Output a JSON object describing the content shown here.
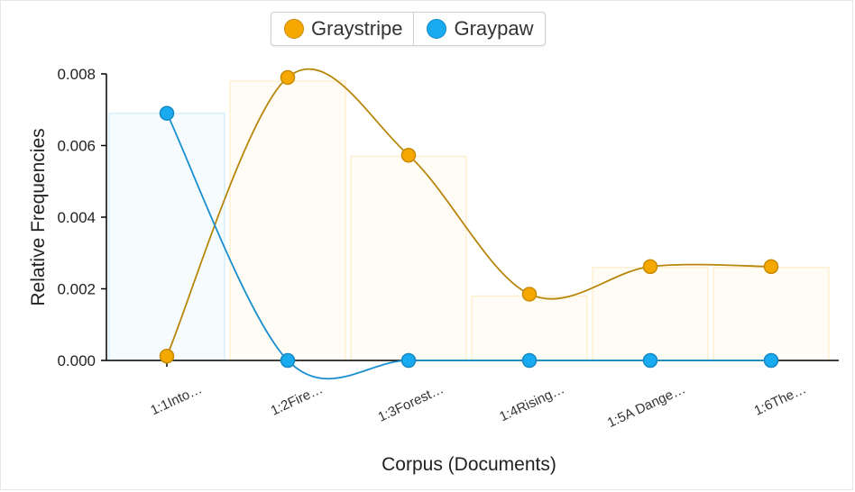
{
  "legend": [
    {
      "label": "Graystripe",
      "color": "#f5a800"
    },
    {
      "label": "Graypaw",
      "color": "#1aaaf0"
    }
  ],
  "chart_data": {
    "type": "line",
    "xlabel": "Corpus (Documents)",
    "ylabel": "Relative Frequencies",
    "categories": [
      "1:1Into…",
      "1:2Fire…",
      "1:3Forest…",
      "1:4Rising…",
      "1:5A Dange…",
      "1:6The…"
    ],
    "ylim": [
      0,
      0.008
    ],
    "yticks": [
      "0.000",
      "0.002",
      "0.004",
      "0.006",
      "0.008"
    ],
    "bars": {
      "values": [
        0.0069,
        0.0078,
        0.0057,
        0.0018,
        0.0026,
        0.0026
      ],
      "colors": [
        "#1aaaf0",
        "#f5a800",
        "#f5a800",
        "#f5a800",
        "#f5a800",
        "#f5a800"
      ]
    },
    "series": [
      {
        "name": "Graystripe",
        "color": "#f5a800",
        "line_color": "#b8860b",
        "values": [
          0.00012,
          0.0079,
          0.00573,
          0.00185,
          0.00262,
          0.00262
        ]
      },
      {
        "name": "Graypaw",
        "color": "#1aaaf0",
        "line_color": "#1a8fd0",
        "values": [
          0.0069,
          0.0,
          0.0,
          0.0,
          0.0,
          0.0
        ]
      }
    ]
  }
}
